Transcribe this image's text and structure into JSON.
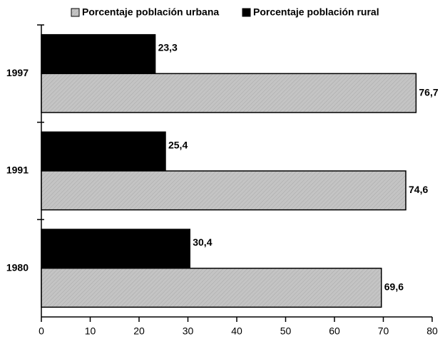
{
  "chart_data": {
    "type": "barh",
    "categories": [
      "1997",
      "1991",
      "1980"
    ],
    "series": [
      {
        "name": "Porcentaje población rural",
        "color": "#000000",
        "values": [
          23.3,
          25.4,
          30.4
        ],
        "value_labels": [
          "23,3",
          "25,4",
          "30,4"
        ]
      },
      {
        "name": "Porcentaje población urbana",
        "color": "#bdbdbd",
        "values": [
          76.7,
          74.6,
          69.6
        ],
        "value_labels": [
          "76,7",
          "74,6",
          "69,6"
        ]
      }
    ],
    "legend_order": [
      1,
      0
    ],
    "xlim": [
      0,
      80
    ],
    "xticks": [
      0,
      10,
      20,
      30,
      40,
      50,
      60,
      70,
      80
    ]
  }
}
